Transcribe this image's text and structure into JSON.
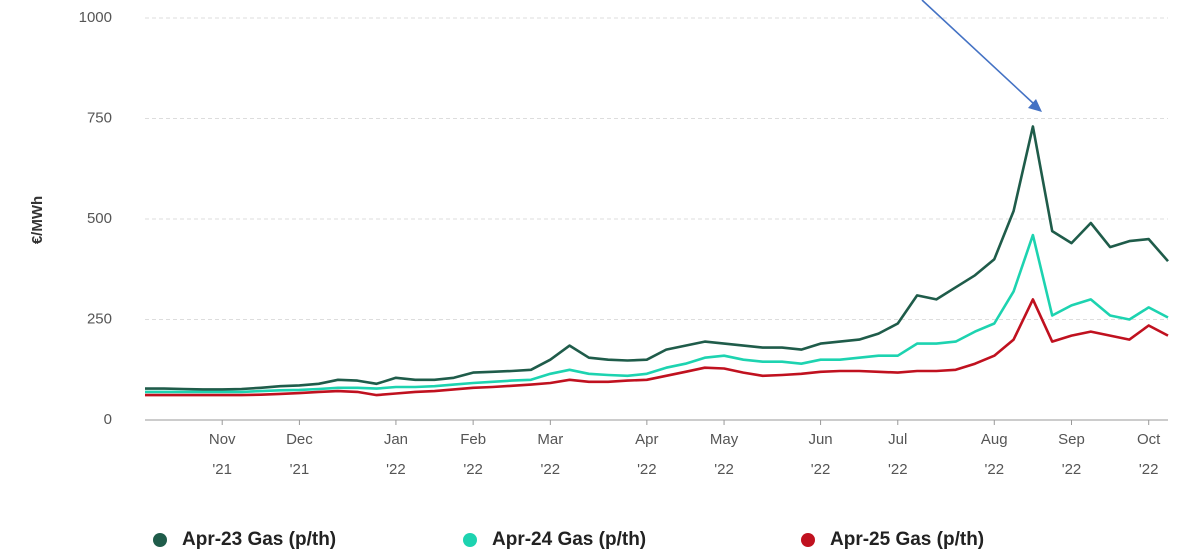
{
  "chart_data": {
    "type": "line",
    "y_label": "€/MWh",
    "categories": [
      null,
      null,
      null,
      null,
      "Nov '21",
      null,
      null,
      null,
      "Dec '21",
      null,
      null,
      null,
      null,
      "Jan '22",
      null,
      null,
      null,
      "Feb '22",
      null,
      null,
      null,
      "Mar '22",
      null,
      null,
      null,
      null,
      "Apr '22",
      null,
      null,
      null,
      "May '22",
      null,
      null,
      null,
      null,
      "Jun '22",
      null,
      null,
      null,
      "Jul '22",
      null,
      null,
      null,
      null,
      "Aug '22",
      null,
      null,
      null,
      "Sep '22",
      null,
      null,
      null,
      "Oct '22",
      null
    ],
    "series": [
      {
        "name": "Apr-23 Gas (p/th)",
        "color": "#1f5c4a",
        "values": [
          78,
          78,
          77,
          76,
          76,
          77,
          80,
          84,
          86,
          90,
          100,
          98,
          90,
          105,
          100,
          100,
          105,
          118,
          120,
          122,
          125,
          150,
          185,
          155,
          150,
          148,
          150,
          175,
          185,
          195,
          190,
          185,
          180,
          180,
          175,
          190,
          195,
          200,
          215,
          240,
          310,
          300,
          330,
          360,
          400,
          520,
          730,
          470,
          440,
          490,
          430,
          445,
          450,
          395
        ]
      },
      {
        "name": "Apr-24 Gas (p/th)",
        "color": "#1dd3b0",
        "values": [
          70,
          70,
          70,
          70,
          70,
          70,
          72,
          74,
          75,
          77,
          80,
          80,
          78,
          82,
          82,
          84,
          88,
          92,
          95,
          98,
          100,
          115,
          125,
          115,
          112,
          110,
          115,
          130,
          140,
          155,
          160,
          150,
          145,
          145,
          140,
          150,
          150,
          155,
          160,
          160,
          190,
          190,
          195,
          220,
          240,
          320,
          460,
          260,
          285,
          300,
          260,
          250,
          280,
          255
        ]
      },
      {
        "name": "Apr-25 Gas (p/th)",
        "color": "#c0111f",
        "values": [
          62,
          62,
          62,
          62,
          62,
          62,
          63,
          65,
          67,
          70,
          72,
          70,
          62,
          66,
          70,
          72,
          76,
          80,
          82,
          85,
          88,
          92,
          100,
          95,
          95,
          98,
          100,
          110,
          120,
          130,
          128,
          118,
          110,
          112,
          115,
          120,
          122,
          122,
          120,
          118,
          122,
          122,
          125,
          140,
          160,
          200,
          300,
          195,
          210,
          220,
          210,
          200,
          235,
          210
        ]
      }
    ],
    "ylim": [
      0,
      1000
    ],
    "yticks": [
      0,
      250,
      500,
      750,
      1000
    ],
    "grid": true,
    "legend": "bottom"
  }
}
